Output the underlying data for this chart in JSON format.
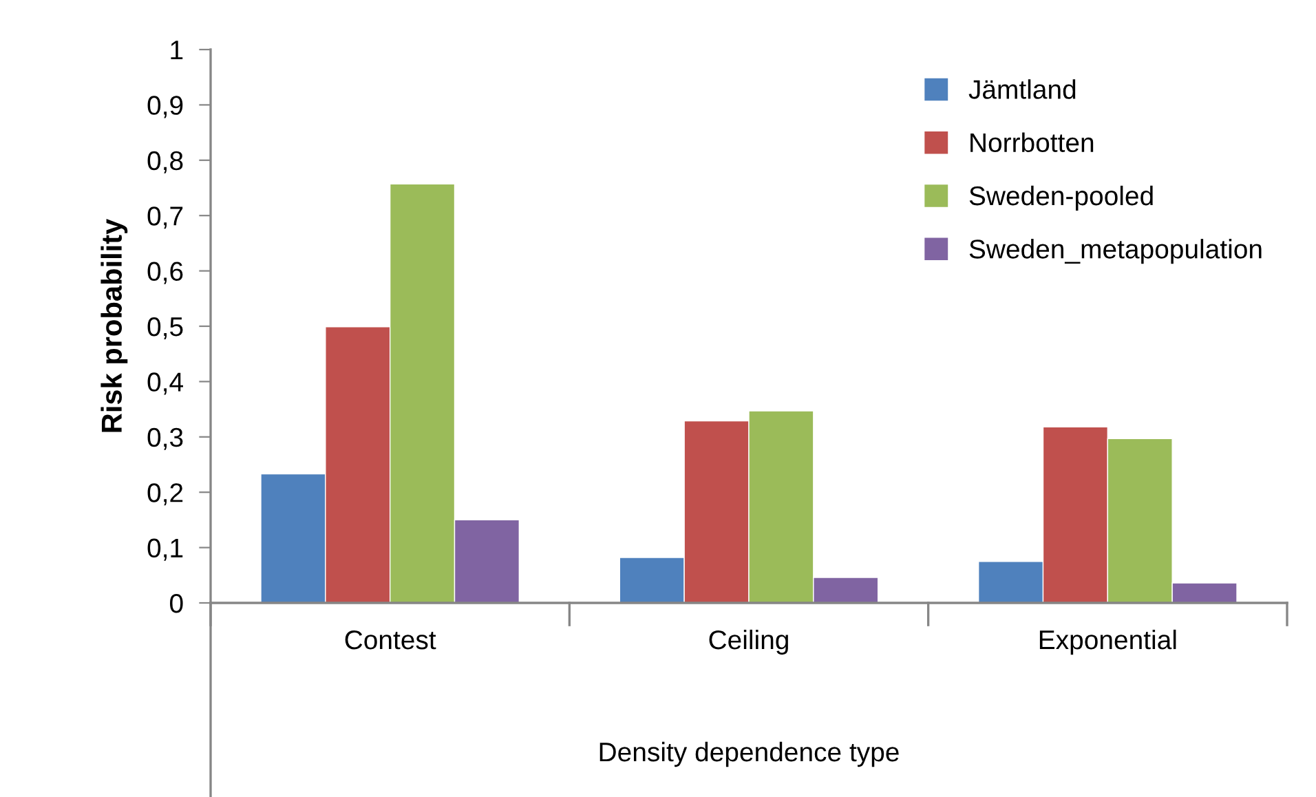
{
  "chart_data": {
    "type": "bar",
    "xlabel": "Density dependence type",
    "ylabel": "Risk probability",
    "categories": [
      "Contest",
      "Ceiling",
      "Exponential"
    ],
    "series": [
      {
        "name": "Jämtland",
        "color": "#4f81bd",
        "values": [
          0.233,
          0.082,
          0.075
        ]
      },
      {
        "name": "Norrbotten",
        "color": "#c0504d",
        "values": [
          0.499,
          0.329,
          0.318
        ]
      },
      {
        "name": "Sweden-pooled",
        "color": "#9bbb59",
        "values": [
          0.757,
          0.347,
          0.297
        ]
      },
      {
        "name": "Sweden_metapopulation",
        "color": "#8064a2",
        "values": [
          0.15,
          0.046,
          0.036
        ]
      }
    ],
    "ylim": [
      0,
      1
    ],
    "yticks": [
      {
        "value": 0,
        "label": "0"
      },
      {
        "value": 0.1,
        "label": "0,1"
      },
      {
        "value": 0.2,
        "label": "0,2"
      },
      {
        "value": 0.3,
        "label": "0,3"
      },
      {
        "value": 0.4,
        "label": "0,4"
      },
      {
        "value": 0.5,
        "label": "0,5"
      },
      {
        "value": 0.6,
        "label": "0,6"
      },
      {
        "value": 0.7,
        "label": "0,7"
      },
      {
        "value": 0.8,
        "label": "0,8"
      },
      {
        "value": 0.9,
        "label": "0,9"
      },
      {
        "value": 1,
        "label": "1"
      }
    ],
    "grid": false,
    "legend": "top right"
  }
}
